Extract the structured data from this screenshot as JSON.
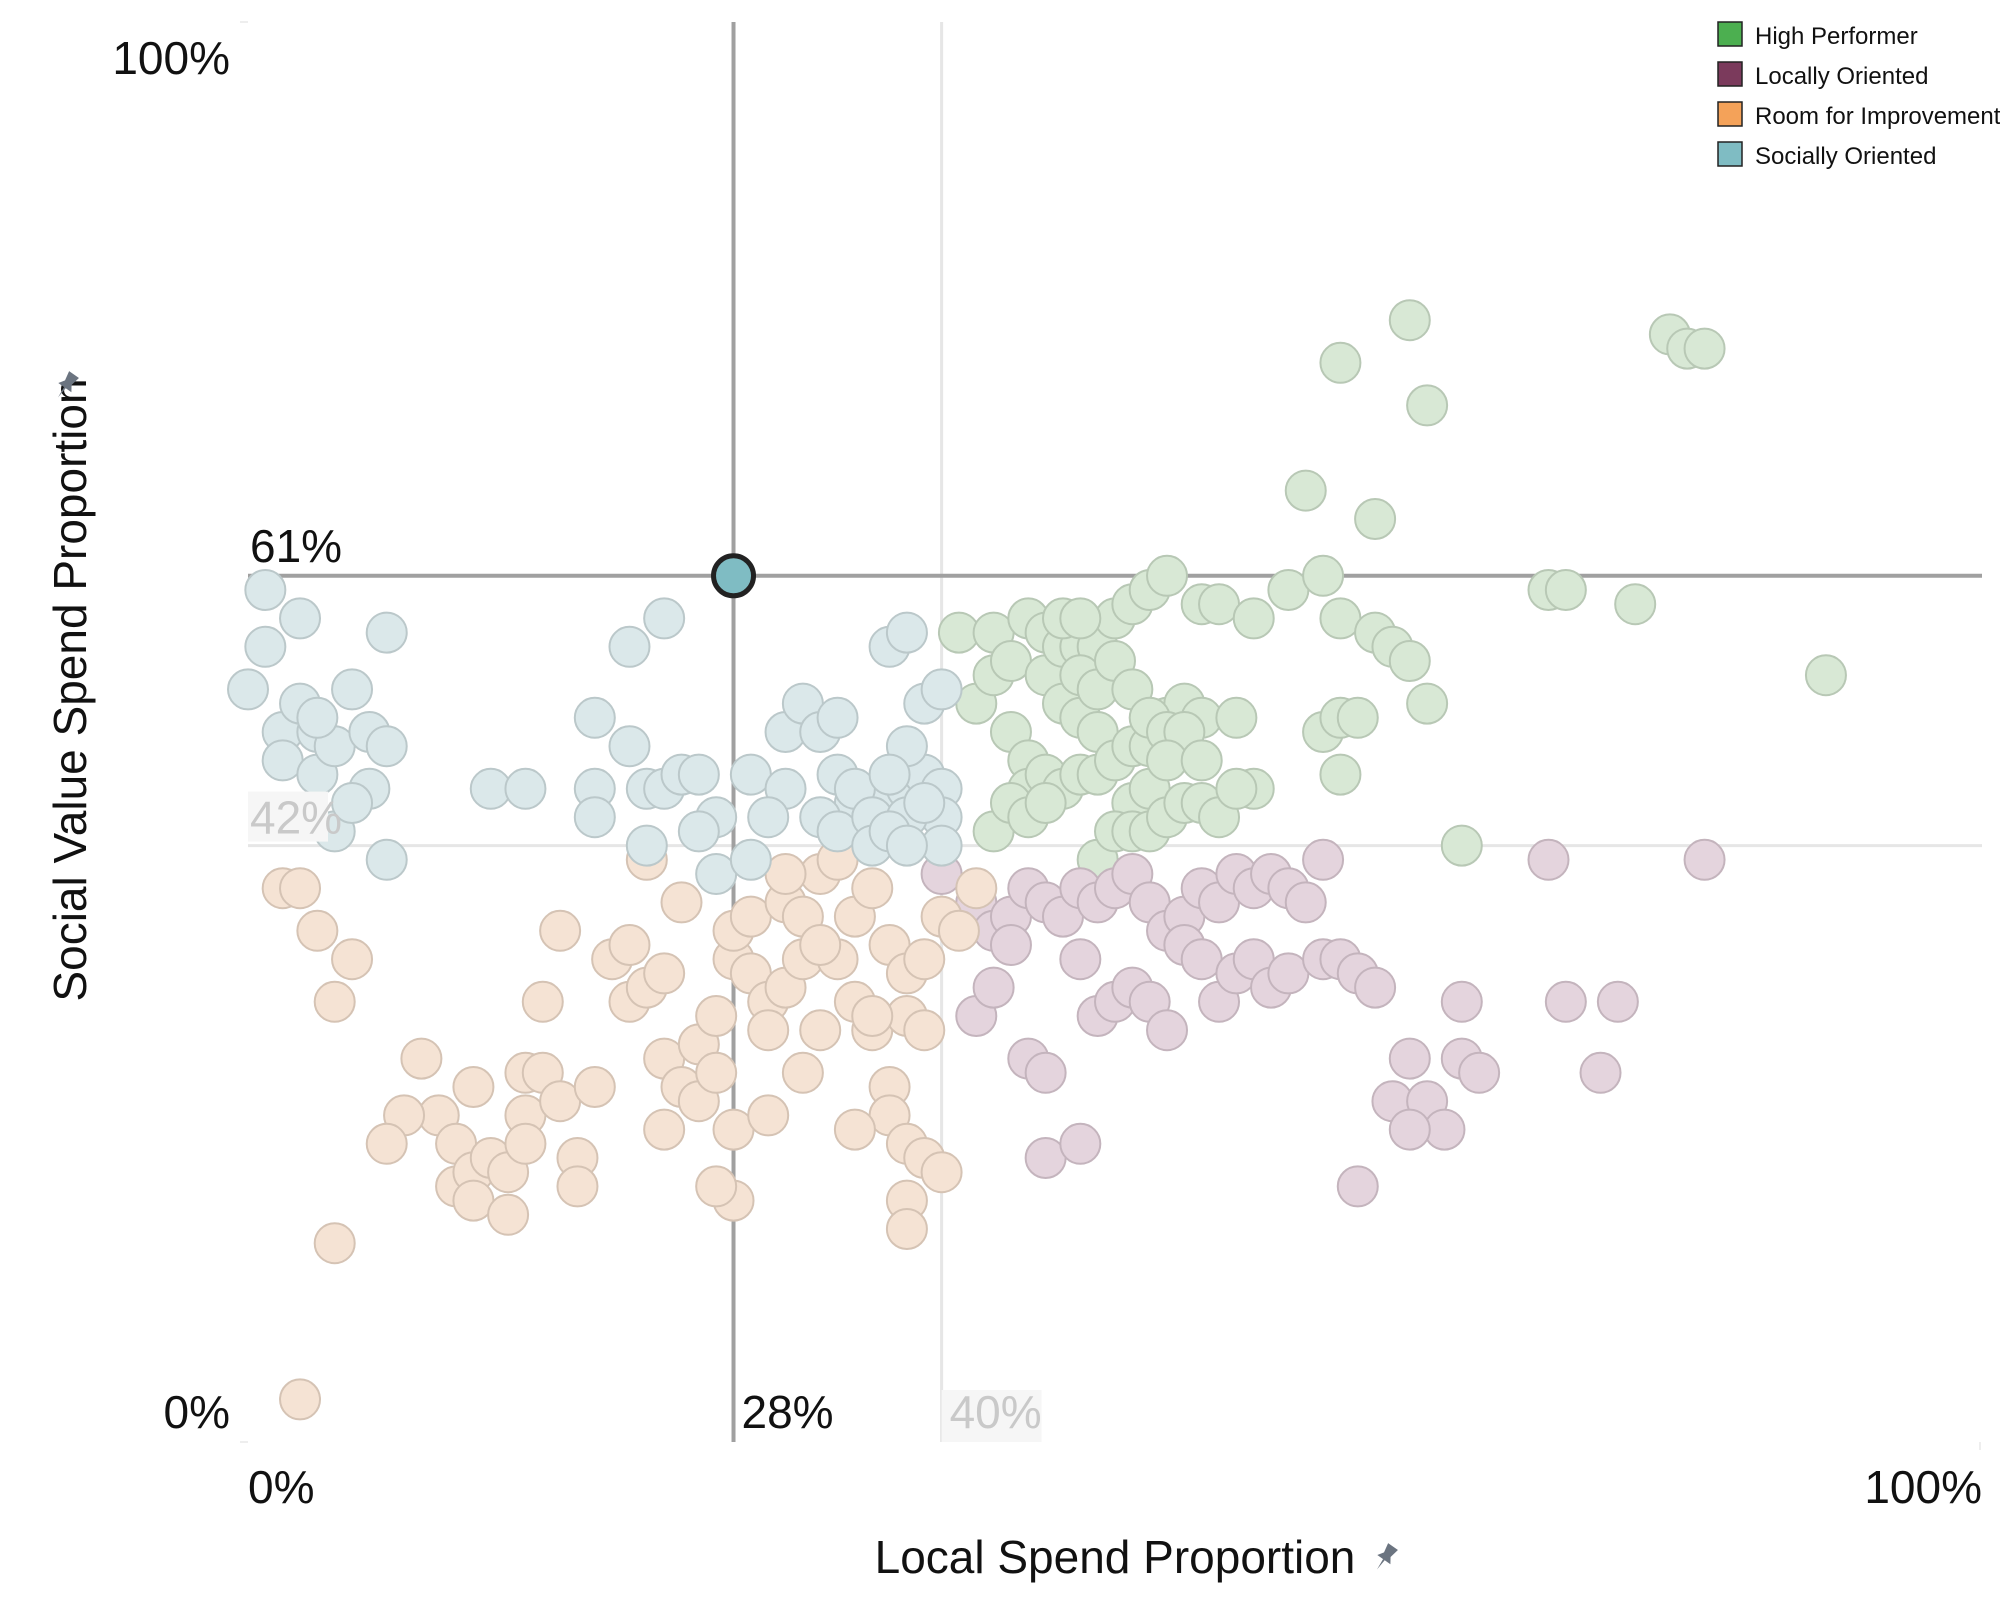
{
  "colors": {
    "high_performer": "#4caf50",
    "locally_oriented": "#7b3a5c",
    "room_for_improvement": "#f4a259",
    "socially_oriented": "#7fbcc3"
  },
  "legend": [
    {
      "label": "High Performer",
      "color": "#4caf50"
    },
    {
      "label": "Locally Oriented",
      "color": "#7b3a5c"
    },
    {
      "label": "Room for Improvement",
      "color": "#f4a259"
    },
    {
      "label": "Socially Oriented",
      "color": "#7fbcc3"
    }
  ],
  "axes": {
    "x_title": "Local Spend Proportion",
    "y_title": "Social Value Spend Proportion",
    "x_min_label": "0%",
    "x_max_label": "100%",
    "y_min_label": "0%",
    "y_max_label": "100%",
    "pin_icon": "pin-icon"
  },
  "reference": {
    "selected_x_label": "28%",
    "selected_y_label": "61%",
    "avg_x_label": "40%",
    "avg_y_label": "42%"
  },
  "chart_data": {
    "type": "scatter",
    "title": "",
    "xlabel": "Local Spend Proportion",
    "ylabel": "Social Value Spend Proportion",
    "xlim": [
      0,
      100
    ],
    "ylim": [
      0,
      100
    ],
    "grid": false,
    "legend_position": "top-right",
    "selected_point": {
      "x": 28,
      "y": 61,
      "category": "Socially Oriented"
    },
    "reference_lines": {
      "x": 40,
      "y": 42
    },
    "series": [
      {
        "name": "High Performer",
        "color": "#4caf50",
        "points": [
          [
            41,
            57
          ],
          [
            43,
            57
          ],
          [
            44,
            50
          ],
          [
            45,
            48
          ],
          [
            42,
            52
          ],
          [
            43,
            54
          ],
          [
            44,
            55
          ],
          [
            46,
            54
          ],
          [
            47,
            52
          ],
          [
            48,
            51
          ],
          [
            49,
            50
          ],
          [
            45,
            46
          ],
          [
            46,
            47
          ],
          [
            47,
            46
          ],
          [
            48,
            47
          ],
          [
            49,
            47
          ],
          [
            50,
            48
          ],
          [
            51,
            49
          ],
          [
            52,
            49
          ],
          [
            53,
            51
          ],
          [
            54,
            52
          ],
          [
            55,
            51
          ],
          [
            45,
            58
          ],
          [
            46,
            57
          ],
          [
            47,
            56
          ],
          [
            48,
            56
          ],
          [
            49,
            56
          ],
          [
            50,
            58
          ],
          [
            51,
            59
          ],
          [
            52,
            60
          ],
          [
            53,
            61
          ],
          [
            55,
            59
          ],
          [
            56,
            59
          ],
          [
            48,
            54
          ],
          [
            49,
            53
          ],
          [
            50,
            55
          ],
          [
            51,
            53
          ],
          [
            52,
            51
          ],
          [
            53,
            50
          ],
          [
            54,
            50
          ],
          [
            51,
            45
          ],
          [
            52,
            46
          ],
          [
            53,
            48
          ],
          [
            55,
            48
          ],
          [
            57,
            51
          ],
          [
            58,
            46
          ],
          [
            58,
            58
          ],
          [
            60,
            60
          ],
          [
            62,
            61
          ],
          [
            63,
            58
          ],
          [
            63,
            47
          ],
          [
            62,
            50
          ],
          [
            63,
            51
          ],
          [
            64,
            51
          ],
          [
            65,
            57
          ],
          [
            66,
            56
          ],
          [
            67,
            55
          ],
          [
            68,
            52
          ],
          [
            68,
            73
          ],
          [
            63,
            76
          ],
          [
            67,
            79
          ],
          [
            61,
            67
          ],
          [
            65,
            65
          ],
          [
            75,
            60
          ],
          [
            76,
            60
          ],
          [
            80,
            59
          ],
          [
            82,
            78
          ],
          [
            83,
            77
          ],
          [
            84,
            77
          ],
          [
            91,
            54
          ],
          [
            43,
            43
          ],
          [
            44,
            45
          ],
          [
            45,
            44
          ],
          [
            46,
            45
          ],
          [
            49,
            41
          ],
          [
            50,
            43
          ],
          [
            51,
            43
          ],
          [
            52,
            43
          ],
          [
            53,
            44
          ],
          [
            54,
            45
          ],
          [
            55,
            45
          ],
          [
            56,
            44
          ],
          [
            57,
            46
          ],
          [
            70,
            42
          ],
          [
            47,
            58
          ],
          [
            48,
            58
          ]
        ]
      },
      {
        "name": "Locally Oriented",
        "color": "#7b3a5c",
        "points": [
          [
            40,
            40
          ],
          [
            42,
            38
          ],
          [
            43,
            36
          ],
          [
            44,
            37
          ],
          [
            45,
            39
          ],
          [
            46,
            38
          ],
          [
            47,
            37
          ],
          [
            48,
            39
          ],
          [
            49,
            38
          ],
          [
            50,
            39
          ],
          [
            51,
            40
          ],
          [
            52,
            38
          ],
          [
            53,
            36
          ],
          [
            54,
            37
          ],
          [
            55,
            39
          ],
          [
            56,
            38
          ],
          [
            57,
            40
          ],
          [
            58,
            39
          ],
          [
            59,
            40
          ],
          [
            60,
            39
          ],
          [
            61,
            38
          ],
          [
            62,
            41
          ],
          [
            42,
            30
          ],
          [
            43,
            32
          ],
          [
            44,
            35
          ],
          [
            45,
            27
          ],
          [
            46,
            26
          ],
          [
            48,
            34
          ],
          [
            49,
            30
          ],
          [
            50,
            31
          ],
          [
            51,
            32
          ],
          [
            52,
            31
          ],
          [
            53,
            29
          ],
          [
            54,
            35
          ],
          [
            55,
            34
          ],
          [
            56,
            31
          ],
          [
            57,
            33
          ],
          [
            58,
            34
          ],
          [
            59,
            32
          ],
          [
            60,
            33
          ],
          [
            62,
            34
          ],
          [
            63,
            34
          ],
          [
            64,
            33
          ],
          [
            65,
            32
          ],
          [
            66,
            24
          ],
          [
            67,
            27
          ],
          [
            68,
            24
          ],
          [
            69,
            22
          ],
          [
            70,
            31
          ],
          [
            70,
            27
          ],
          [
            71,
            26
          ],
          [
            75,
            41
          ],
          [
            76,
            31
          ],
          [
            78,
            26
          ],
          [
            79,
            31
          ],
          [
            84,
            41
          ],
          [
            46,
            20
          ],
          [
            48,
            21
          ],
          [
            64,
            18
          ],
          [
            67,
            22
          ]
        ]
      },
      {
        "name": "Room for Improvement",
        "color": "#f4a259",
        "points": [
          [
            2,
            39
          ],
          [
            3,
            39
          ],
          [
            4,
            36
          ],
          [
            5,
            31
          ],
          [
            6,
            34
          ],
          [
            10,
            27
          ],
          [
            11,
            23
          ],
          [
            12,
            21
          ],
          [
            12,
            18
          ],
          [
            13,
            19
          ],
          [
            13,
            17
          ],
          [
            14,
            20
          ],
          [
            15,
            16
          ],
          [
            16,
            23
          ],
          [
            16,
            26
          ],
          [
            17,
            26
          ],
          [
            18,
            24
          ],
          [
            19,
            20
          ],
          [
            19,
            18
          ],
          [
            20,
            25
          ],
          [
            21,
            34
          ],
          [
            22,
            35
          ],
          [
            22,
            31
          ],
          [
            23,
            32
          ],
          [
            24,
            33
          ],
          [
            24,
            27
          ],
          [
            25,
            25
          ],
          [
            26,
            28
          ],
          [
            26,
            24
          ],
          [
            27,
            26
          ],
          [
            27,
            30
          ],
          [
            28,
            34
          ],
          [
            28,
            36
          ],
          [
            29,
            33
          ],
          [
            29,
            37
          ],
          [
            30,
            31
          ],
          [
            30,
            29
          ],
          [
            31,
            32
          ],
          [
            31,
            38
          ],
          [
            32,
            34
          ],
          [
            32,
            26
          ],
          [
            33,
            29
          ],
          [
            34,
            34
          ],
          [
            35,
            37
          ],
          [
            35,
            31
          ],
          [
            36,
            39
          ],
          [
            36,
            29
          ],
          [
            37,
            35
          ],
          [
            38,
            33
          ],
          [
            38,
            30
          ],
          [
            39,
            34
          ],
          [
            39,
            29
          ],
          [
            37,
            25
          ],
          [
            37,
            23
          ],
          [
            38,
            21
          ],
          [
            38,
            17
          ],
          [
            39,
            20
          ],
          [
            38,
            15
          ],
          [
            40,
            37
          ],
          [
            41,
            36
          ],
          [
            42,
            39
          ],
          [
            40,
            19
          ],
          [
            35,
            22
          ],
          [
            36,
            30
          ],
          [
            28,
            17
          ],
          [
            28,
            22
          ],
          [
            30,
            23
          ],
          [
            23,
            41
          ],
          [
            25,
            38
          ],
          [
            33,
            40
          ],
          [
            34,
            41
          ],
          [
            31,
            40
          ],
          [
            32,
            37
          ],
          [
            33,
            35
          ],
          [
            27,
            18
          ],
          [
            9,
            23
          ],
          [
            8,
            21
          ],
          [
            5,
            14
          ],
          [
            3,
            3
          ],
          [
            15,
            19
          ],
          [
            16,
            21
          ],
          [
            24,
            22
          ],
          [
            13,
            25
          ],
          [
            17,
            31
          ],
          [
            18,
            36
          ]
        ]
      },
      {
        "name": "Socially Oriented",
        "color": "#7fbcc3",
        "points": [
          [
            1,
            56
          ],
          [
            2,
            50
          ],
          [
            2,
            48
          ],
          [
            3,
            52
          ],
          [
            4,
            50
          ],
          [
            4,
            47
          ],
          [
            5,
            49
          ],
          [
            6,
            53
          ],
          [
            7,
            50
          ],
          [
            7,
            46
          ],
          [
            8,
            49
          ],
          [
            8,
            57
          ],
          [
            8,
            41
          ],
          [
            5,
            43
          ],
          [
            6,
            45
          ],
          [
            4,
            51
          ],
          [
            14,
            46
          ],
          [
            16,
            46
          ],
          [
            20,
            51
          ],
          [
            20,
            46
          ],
          [
            22,
            49
          ],
          [
            23,
            46
          ],
          [
            23,
            42
          ],
          [
            24,
            46
          ],
          [
            25,
            47
          ],
          [
            26,
            47
          ],
          [
            27,
            44
          ],
          [
            27,
            40
          ],
          [
            29,
            47
          ],
          [
            31,
            46
          ],
          [
            31,
            50
          ],
          [
            32,
            52
          ],
          [
            33,
            50
          ],
          [
            34,
            51
          ],
          [
            34,
            47
          ],
          [
            35,
            45
          ],
          [
            36,
            44
          ],
          [
            37,
            45
          ],
          [
            38,
            46
          ],
          [
            39,
            47
          ],
          [
            40,
            46
          ],
          [
            40,
            44
          ],
          [
            38,
            49
          ],
          [
            39,
            52
          ],
          [
            40,
            53
          ],
          [
            37,
            56
          ],
          [
            38,
            57
          ],
          [
            22,
            56
          ],
          [
            24,
            58
          ],
          [
            30,
            44
          ],
          [
            33,
            44
          ],
          [
            34,
            43
          ],
          [
            35,
            46
          ],
          [
            36,
            44
          ],
          [
            37,
            47
          ],
          [
            38,
            44
          ],
          [
            39,
            45
          ],
          [
            40,
            42
          ],
          [
            1,
            60
          ],
          [
            3,
            58
          ],
          [
            0,
            53
          ],
          [
            20,
            44
          ],
          [
            26,
            43
          ],
          [
            29,
            41
          ],
          [
            36,
            42
          ],
          [
            37,
            43
          ],
          [
            38,
            42
          ]
        ]
      }
    ]
  }
}
